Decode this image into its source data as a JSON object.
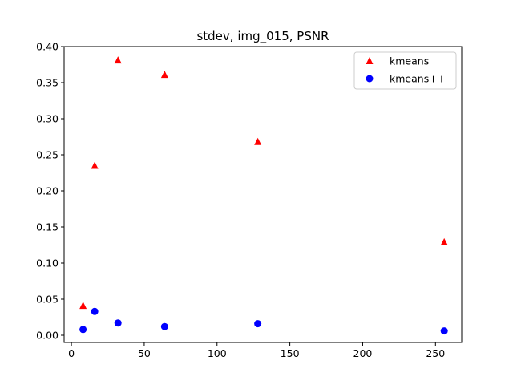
{
  "chart_data": {
    "type": "scatter",
    "title": "stdev, img_015, PSNR",
    "xlabel": "",
    "ylabel": "",
    "xlim": [
      -5,
      268
    ],
    "ylim": [
      -0.01,
      0.4
    ],
    "xticks": [
      0,
      50,
      100,
      150,
      200,
      250
    ],
    "yticks": [
      0.0,
      0.05,
      0.1,
      0.15,
      0.2,
      0.25,
      0.3,
      0.35,
      0.4
    ],
    "xtick_labels": [
      "0",
      "50",
      "100",
      "150",
      "200",
      "250"
    ],
    "ytick_labels": [
      "0.00",
      "0.05",
      "0.10",
      "0.15",
      "0.20",
      "0.25",
      "0.30",
      "0.35",
      "0.40"
    ],
    "grid": false,
    "legend_position": "top-right",
    "series": [
      {
        "name": "kmeans",
        "marker": "triangle",
        "color": "#ff0000",
        "x": [
          8,
          16,
          32,
          64,
          128,
          256
        ],
        "y": [
          0.041,
          0.235,
          0.381,
          0.361,
          0.268,
          0.129
        ]
      },
      {
        "name": "kmeans++",
        "marker": "circle",
        "color": "#0000ff",
        "x": [
          8,
          16,
          32,
          64,
          128,
          256
        ],
        "y": [
          0.008,
          0.033,
          0.017,
          0.012,
          0.016,
          0.006
        ]
      }
    ]
  }
}
